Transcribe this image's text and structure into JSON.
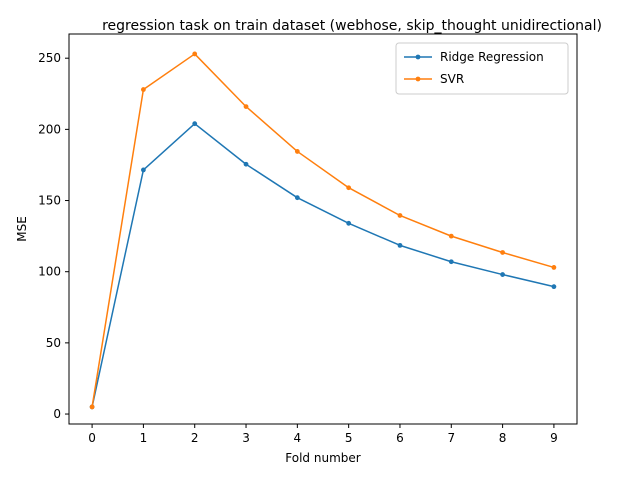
{
  "chart_data": {
    "type": "line",
    "title": "regression task on train dataset (webhose, skip_thought unidirectional)",
    "xlabel": "Fold number",
    "ylabel": "MSE",
    "x": [
      0,
      1,
      2,
      3,
      4,
      5,
      6,
      7,
      8,
      9
    ],
    "xlim": [
      -0.45,
      9.45
    ],
    "ylim": [
      -7,
      267
    ],
    "xticks": [
      "0",
      "1",
      "2",
      "3",
      "4",
      "5",
      "6",
      "7",
      "8",
      "9"
    ],
    "yticks": [
      0,
      50,
      100,
      150,
      200,
      250
    ],
    "grid": false,
    "legend_position": "top-right",
    "series": [
      {
        "name": "Ridge Regression",
        "color": "#1f77b4",
        "values": [
          5,
          171.5,
          204,
          175.5,
          152,
          134,
          118.5,
          107,
          98,
          89.5
        ]
      },
      {
        "name": "SVR",
        "color": "#ff7f0e",
        "values": [
          5,
          228,
          253,
          216,
          184.5,
          159,
          139.5,
          125,
          113.5,
          103
        ]
      }
    ]
  }
}
